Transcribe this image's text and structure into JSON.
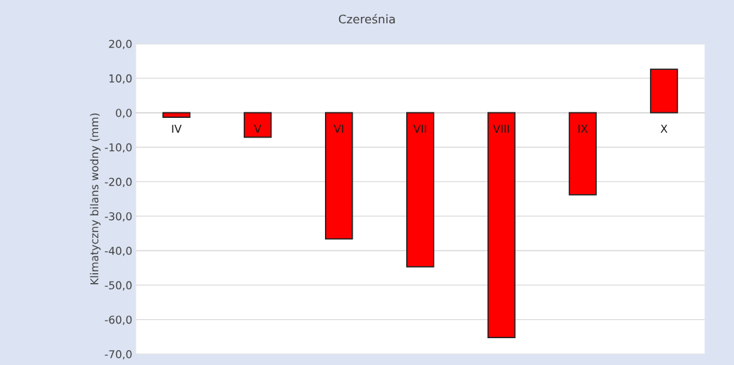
{
  "chart_data": {
    "type": "bar",
    "title": "Czereśnia",
    "ylabel": "Klimatyczny bilans wodny (mm)",
    "categories": [
      "IV",
      "V",
      "VI",
      "VII",
      "VIII",
      "IX",
      "X"
    ],
    "values": [
      -1.3,
      -7.1,
      -36.6,
      -44.7,
      -65.2,
      -23.8,
      12.6
    ],
    "color": "#ff0000",
    "ylim": [
      -70,
      20
    ],
    "yticks": [
      {
        "value": 20,
        "label": "20,0"
      },
      {
        "value": 10,
        "label": "10,0"
      },
      {
        "value": 0,
        "label": "0,0"
      },
      {
        "value": -10,
        "label": "-10,0"
      },
      {
        "value": -20,
        "label": "-20,0"
      },
      {
        "value": -30,
        "label": "-30,0"
      },
      {
        "value": -40,
        "label": "-40,0"
      },
      {
        "value": -50,
        "label": "-50,0"
      },
      {
        "value": -60,
        "label": "-60,0"
      },
      {
        "value": -70,
        "label": "-70,0"
      }
    ],
    "grid": "y"
  }
}
